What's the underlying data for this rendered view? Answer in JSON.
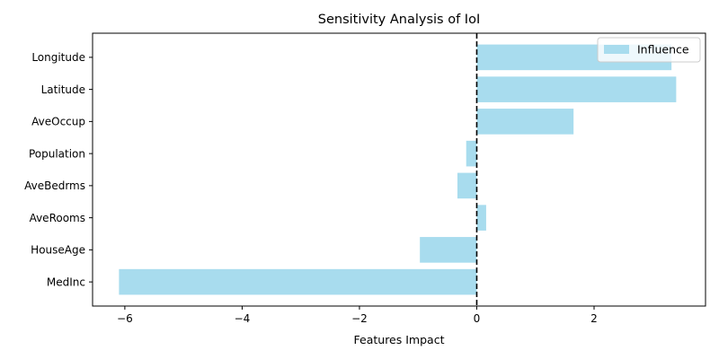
{
  "chart_data": {
    "type": "bar",
    "orientation": "horizontal",
    "title": "Sensitivity Analysis of IoI",
    "xlabel": "Features Impact",
    "ylabel": "",
    "categories": [
      "MedInc",
      "HouseAge",
      "AveRooms",
      "AveBedrms",
      "Population",
      "AveOccup",
      "Latitude",
      "Longitude"
    ],
    "series": [
      {
        "name": "Influence",
        "values": [
          -6.1,
          -0.97,
          0.16,
          -0.33,
          -0.18,
          1.65,
          3.4,
          3.32
        ],
        "color": "#a8dcee"
      }
    ],
    "xlim": [
      -6.55,
      3.9
    ],
    "xticks": [
      -6,
      -4,
      -2,
      0,
      2
    ],
    "xtick_labels": [
      "−6",
      "−4",
      "−2",
      "0",
      "2"
    ],
    "reference_line": {
      "x": 0,
      "style": "dashed",
      "color": "#000000"
    },
    "grid": false,
    "legend": {
      "position": "top-right"
    }
  }
}
